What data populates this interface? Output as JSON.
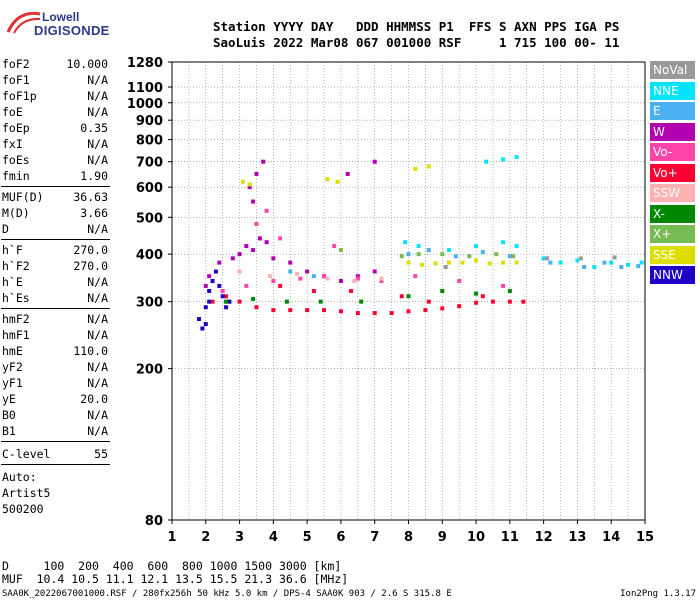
{
  "logo": {
    "line1": "Lowell",
    "line2": "DIGISONDE"
  },
  "header": {
    "line1": "Station YYYY DAY   DDD HHMMSS P1  FFS S AXN PPS IGA PS",
    "line2": "SaoLuis 2022 Mar08 067 001000 RSF     1 715 100 00- 11"
  },
  "params_group1": [
    {
      "label": "foF2",
      "value": "10.000"
    },
    {
      "label": "foF1",
      "value": "N/A"
    },
    {
      "label": "foF1p",
      "value": "N/A"
    },
    {
      "label": "foE",
      "value": "N/A"
    },
    {
      "label": "foEp",
      "value": "0.35"
    },
    {
      "label": "fxI",
      "value": "N/A"
    },
    {
      "label": "foEs",
      "value": "N/A"
    },
    {
      "label": "fmin",
      "value": "1.90"
    }
  ],
  "params_group2": [
    {
      "label": "MUF(D)",
      "value": "36.63"
    },
    {
      "label": "M(D)",
      "value": "3.66"
    },
    {
      "label": "D",
      "value": "N/A"
    }
  ],
  "params_group3": [
    {
      "label": "h`F",
      "value": "270.0"
    },
    {
      "label": "h`F2",
      "value": "270.0"
    },
    {
      "label": "h`E",
      "value": "N/A"
    },
    {
      "label": "h`Es",
      "value": "N/A"
    }
  ],
  "params_group4": [
    {
      "label": "hmF2",
      "value": "N/A"
    },
    {
      "label": "hmF1",
      "value": "N/A"
    },
    {
      "label": "hmE",
      "value": "110.0"
    },
    {
      "label": "yF2",
      "value": "N/A"
    },
    {
      "label": "yF1",
      "value": "N/A"
    },
    {
      "label": "yE",
      "value": "20.0"
    },
    {
      "label": "B0",
      "value": "N/A"
    },
    {
      "label": "B1",
      "value": "N/A"
    }
  ],
  "clevel": {
    "label": "C-level",
    "value": "55"
  },
  "auto": {
    "line1": "Auto:",
    "line2": "Artist5",
    "line3": "500200"
  },
  "bottom": {
    "d_line": "D     100  200  400  600  800 1000 1500 3000 [km]",
    "muf_line": "MUF  10.4 10.5 11.1 12.1 13.5 15.5 21.3 36.6 [MHz]"
  },
  "footer": {
    "left": "SAA0K_2022067001000.RSF / 280fx256h 50 kHz 5.0 km / DPS-4 SAA0K 903 / 2.6 S 315.8 E",
    "right": "Ion2Png 1.3.17"
  },
  "legend": [
    {
      "name": "NoVal",
      "color": "#999999"
    },
    {
      "name": "NNE",
      "color": "#00e4ff"
    },
    {
      "name": "E",
      "color": "#4ab0f0"
    },
    {
      "name": "W",
      "color": "#b000b0"
    },
    {
      "name": "Vo-",
      "color": "#ff44aa"
    },
    {
      "name": "Vo+",
      "color": "#ff0033"
    },
    {
      "name": "SSW",
      "color": "#ffb0b0"
    },
    {
      "name": "X-",
      "color": "#008800"
    },
    {
      "name": "X+",
      "color": "#77bb55"
    },
    {
      "name": "SSE",
      "color": "#dddd00"
    },
    {
      "name": "NNW",
      "color": "#1c00c8"
    }
  ],
  "chart_data": {
    "type": "scatter",
    "title": "",
    "xlabel": "",
    "ylabel": "",
    "xlim": [
      1,
      15
    ],
    "ylim_log": [
      80,
      1280
    ],
    "y_scale": "log",
    "x_ticks": [
      "1",
      "2",
      "3",
      "4",
      "5",
      "6",
      "7",
      "8",
      "9",
      "10",
      "11",
      "12",
      "13",
      "14",
      "15"
    ],
    "y_ticks": [
      {
        "value": 80,
        "label": "80"
      },
      {
        "value": 200,
        "label": "200"
      },
      {
        "value": 300,
        "label": "300"
      },
      {
        "value": 400,
        "label": "400"
      },
      {
        "value": 500,
        "label": "500"
      },
      {
        "value": 600,
        "label": "600"
      },
      {
        "value": 700,
        "label": "700"
      },
      {
        "value": 800,
        "label": "800"
      },
      {
        "value": 900,
        "label": "900"
      },
      {
        "value": 1000,
        "label": "1000"
      },
      {
        "value": 1100,
        "label": "1100"
      },
      {
        "value": 1280,
        "label": "1280"
      }
    ],
    "grid": true,
    "series": [
      {
        "name": "W",
        "color": "#b000b0",
        "points": [
          [
            2.0,
            330
          ],
          [
            2.1,
            350
          ],
          [
            2.4,
            380
          ],
          [
            2.8,
            390
          ],
          [
            3.0,
            400
          ],
          [
            3.2,
            420
          ],
          [
            3.4,
            410
          ],
          [
            3.6,
            440
          ],
          [
            3.8,
            430
          ],
          [
            4.0,
            390
          ],
          [
            4.5,
            380
          ],
          [
            5.0,
            360
          ],
          [
            5.5,
            350
          ],
          [
            6.0,
            340
          ],
          [
            6.5,
            350
          ],
          [
            7.0,
            360
          ],
          [
            3.3,
            600
          ],
          [
            3.5,
            650
          ],
          [
            3.7,
            700
          ],
          [
            3.4,
            550
          ],
          [
            6.2,
            650
          ],
          [
            7.0,
            700
          ]
        ]
      },
      {
        "name": "Vo+",
        "color": "#ff0033",
        "points": [
          [
            2.2,
            300
          ],
          [
            2.6,
            310
          ],
          [
            3.0,
            300
          ],
          [
            3.5,
            290
          ],
          [
            4.0,
            285
          ],
          [
            4.5,
            285
          ],
          [
            5.0,
            285
          ],
          [
            5.5,
            285
          ],
          [
            6.0,
            283
          ],
          [
            6.5,
            280
          ],
          [
            7.0,
            280
          ],
          [
            7.5,
            280
          ],
          [
            8.0,
            283
          ],
          [
            8.5,
            285
          ],
          [
            9.0,
            288
          ],
          [
            9.5,
            292
          ],
          [
            10.0,
            298
          ],
          [
            10.5,
            300
          ],
          [
            11.0,
            300
          ],
          [
            11.4,
            300
          ],
          [
            4.2,
            330
          ],
          [
            5.2,
            320
          ],
          [
            6.3,
            320
          ],
          [
            7.8,
            310
          ],
          [
            8.6,
            300
          ],
          [
            10.2,
            310
          ]
        ]
      },
      {
        "name": "Vo-",
        "color": "#ff44aa",
        "points": [
          [
            2.5,
            320
          ],
          [
            3.2,
            330
          ],
          [
            4.0,
            340
          ],
          [
            4.8,
            345
          ],
          [
            5.5,
            350
          ],
          [
            6.5,
            345
          ],
          [
            7.2,
            340
          ],
          [
            8.2,
            350
          ],
          [
            9.5,
            340
          ],
          [
            10.8,
            330
          ],
          [
            3.5,
            480
          ],
          [
            3.8,
            520
          ],
          [
            4.2,
            440
          ],
          [
            5.8,
            420
          ]
        ]
      },
      {
        "name": "NNW",
        "color": "#1c00c8",
        "points": [
          [
            1.8,
            270
          ],
          [
            2.0,
            290
          ],
          [
            2.1,
            320
          ],
          [
            2.2,
            340
          ],
          [
            2.3,
            360
          ],
          [
            2.4,
            330
          ],
          [
            2.5,
            310
          ],
          [
            1.9,
            255
          ],
          [
            2.0,
            262
          ],
          [
            2.1,
            300
          ],
          [
            2.6,
            290
          ],
          [
            2.7,
            300
          ]
        ]
      },
      {
        "name": "NNE",
        "color": "#00e4ff",
        "points": [
          [
            7.9,
            430
          ],
          [
            8.3,
            420
          ],
          [
            9.2,
            410
          ],
          [
            10.0,
            420
          ],
          [
            10.8,
            430
          ],
          [
            11.2,
            420
          ],
          [
            12.0,
            390
          ],
          [
            12.5,
            380
          ],
          [
            13.0,
            385
          ],
          [
            13.5,
            370
          ],
          [
            14.0,
            380
          ],
          [
            14.5,
            375
          ],
          [
            14.9,
            380
          ],
          [
            10.3,
            700
          ],
          [
            10.8,
            710
          ],
          [
            11.2,
            720
          ]
        ]
      },
      {
        "name": "E",
        "color": "#4ab0f0",
        "points": [
          [
            8.0,
            400
          ],
          [
            8.6,
            410
          ],
          [
            9.4,
            395
          ],
          [
            10.2,
            405
          ],
          [
            11.0,
            395
          ],
          [
            12.2,
            380
          ],
          [
            13.2,
            370
          ],
          [
            13.8,
            380
          ],
          [
            14.3,
            370
          ],
          [
            14.8,
            372
          ],
          [
            4.5,
            360
          ],
          [
            5.2,
            350
          ]
        ]
      },
      {
        "name": "SSE",
        "color": "#dddd00",
        "points": [
          [
            8.0,
            380
          ],
          [
            8.4,
            375
          ],
          [
            8.8,
            378
          ],
          [
            9.2,
            380
          ],
          [
            9.6,
            380
          ],
          [
            10.0,
            385
          ],
          [
            10.4,
            378
          ],
          [
            10.8,
            380
          ],
          [
            11.2,
            380
          ],
          [
            8.2,
            670
          ],
          [
            8.6,
            680
          ],
          [
            3.1,
            620
          ],
          [
            3.3,
            610
          ],
          [
            5.6,
            630
          ],
          [
            5.9,
            620
          ]
        ]
      },
      {
        "name": "X-",
        "color": "#008800",
        "points": [
          [
            2.6,
            300
          ],
          [
            3.4,
            305
          ],
          [
            4.4,
            300
          ],
          [
            5.4,
            300
          ],
          [
            6.6,
            300
          ],
          [
            8.0,
            310
          ],
          [
            9.0,
            320
          ],
          [
            10.0,
            315
          ],
          [
            11.0,
            320
          ]
        ]
      },
      {
        "name": "X+",
        "color": "#77bb55",
        "points": [
          [
            7.8,
            395
          ],
          [
            8.3,
            400
          ],
          [
            9.0,
            400
          ],
          [
            9.8,
            395
          ],
          [
            10.6,
            400
          ],
          [
            11.1,
            395
          ],
          [
            6.0,
            410
          ]
        ]
      },
      {
        "name": "SSW",
        "color": "#ffb0b0",
        "points": [
          [
            3.0,
            360
          ],
          [
            3.9,
            350
          ],
          [
            4.7,
            355
          ],
          [
            5.6,
            345
          ],
          [
            6.4,
            340
          ],
          [
            7.2,
            345
          ]
        ]
      },
      {
        "name": "NoVal",
        "color": "#999999",
        "points": [
          [
            12.1,
            390
          ],
          [
            13.1,
            390
          ],
          [
            14.1,
            392
          ],
          [
            9.1,
            370
          ]
        ]
      }
    ]
  }
}
